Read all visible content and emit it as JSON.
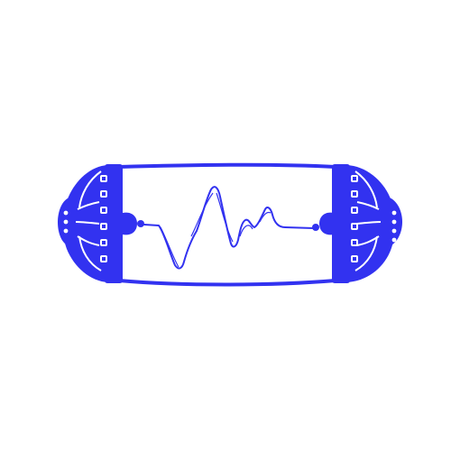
{
  "illustration": {
    "subject": "signal-capsule-icon",
    "ink_color": "#3232f0",
    "paper_color": "#ffffff"
  }
}
